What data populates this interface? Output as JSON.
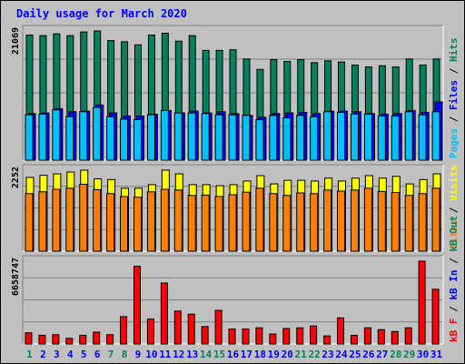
{
  "title": "Daily usage for March 2020",
  "colors": {
    "hits": "#00805C",
    "files": "#0000FF",
    "pages": "#00C0FF",
    "visits": "#FFFF00",
    "sites": "#FF8000",
    "kb_f": "#FF0000",
    "kb_in": "#0000FF",
    "kb_out": "#00805C",
    "weekend_day": "#00805C",
    "weekday": "#0000FF",
    "panel_bg": "#C0C0C0"
  },
  "chart_data": [
    {
      "type": "bar",
      "panel": "hits",
      "categories": [
        "1",
        "2",
        "3",
        "4",
        "5",
        "6",
        "7",
        "8",
        "9",
        "10",
        "11",
        "12",
        "13",
        "14",
        "15",
        "16",
        "17",
        "18",
        "19",
        "20",
        "21",
        "22",
        "23",
        "24",
        "25",
        "26",
        "27",
        "28",
        "29",
        "30",
        "31"
      ],
      "weekend": [
        "1",
        "7",
        "8",
        "14",
        "15",
        "21",
        "22",
        "28",
        "29"
      ],
      "ymax_label": "21069",
      "ymax": 21069,
      "right_labels": [
        "Hits",
        "Files",
        "Pages"
      ],
      "series": [
        {
          "name": "Hits",
          "values": [
            20400,
            20300,
            20600,
            20300,
            20900,
            21069,
            19500,
            19300,
            18800,
            20400,
            20700,
            19400,
            20300,
            17900,
            17900,
            18000,
            16500,
            14800,
            16400,
            16100,
            16400,
            15900,
            16200,
            16000,
            15500,
            15200,
            15400,
            15200,
            16500,
            15500,
            16500
          ]
        },
        {
          "name": "Files",
          "values": [
            7600,
            7700,
            8400,
            7900,
            8000,
            9000,
            7700,
            7200,
            7200,
            7500,
            8100,
            7700,
            8000,
            7700,
            7900,
            7600,
            7300,
            7000,
            7600,
            7700,
            7800,
            7600,
            8000,
            8000,
            7900,
            7600,
            7500,
            7600,
            8100,
            7800,
            9500
          ]
        },
        {
          "name": "Pages",
          "values": [
            7400,
            7500,
            8200,
            7100,
            7900,
            8600,
            7100,
            6700,
            6600,
            7400,
            8100,
            7700,
            7700,
            7600,
            7400,
            7400,
            7300,
            6600,
            7300,
            6900,
            7300,
            7100,
            7900,
            7800,
            7500,
            7500,
            7200,
            7200,
            7900,
            7400,
            7900
          ]
        }
      ]
    },
    {
      "type": "bar",
      "panel": "visits",
      "categories": [
        "1",
        "2",
        "3",
        "4",
        "5",
        "6",
        "7",
        "8",
        "9",
        "10",
        "11",
        "12",
        "13",
        "14",
        "15",
        "16",
        "17",
        "18",
        "19",
        "20",
        "21",
        "22",
        "23",
        "24",
        "25",
        "26",
        "27",
        "28",
        "29",
        "30",
        "31"
      ],
      "ymax_label": "2252",
      "ymax": 2252,
      "right_labels": [
        "Visits",
        "Sites"
      ],
      "series": [
        {
          "name": "Visits",
          "values": [
            2050,
            2110,
            2150,
            2200,
            2252,
            2010,
            1990,
            1750,
            1750,
            1850,
            2252,
            2150,
            1850,
            1850,
            1820,
            1850,
            1950,
            2100,
            1870,
            1970,
            1970,
            1950,
            2030,
            1950,
            2030,
            2100,
            2030,
            2080,
            1870,
            1990,
            2150
          ]
        },
        {
          "name": "Sites",
          "values": [
            1600,
            1650,
            1720,
            1750,
            1860,
            1710,
            1600,
            1520,
            1500,
            1650,
            1720,
            1700,
            1550,
            1560,
            1520,
            1570,
            1640,
            1750,
            1600,
            1550,
            1620,
            1600,
            1700,
            1670,
            1700,
            1750,
            1660,
            1630,
            1550,
            1600,
            1750
          ]
        }
      ]
    },
    {
      "type": "bar",
      "panel": "kbytes",
      "categories": [
        "1",
        "2",
        "3",
        "4",
        "5",
        "6",
        "7",
        "8",
        "9",
        "10",
        "11",
        "12",
        "13",
        "14",
        "15",
        "16",
        "17",
        "18",
        "19",
        "20",
        "21",
        "22",
        "23",
        "24",
        "25",
        "26",
        "27",
        "28",
        "29",
        "30",
        "31"
      ],
      "ymax_label": "6658747",
      "ymax": 6658747,
      "right_labels": [
        "kB F",
        "kB In",
        "kB Out"
      ],
      "series": [
        {
          "name": "kB F",
          "values": [
            900000,
            700000,
            750000,
            450000,
            700000,
            950000,
            750000,
            2200000,
            6250000,
            2000000,
            4900000,
            2650000,
            2400000,
            1400000,
            2700000,
            1200000,
            1200000,
            1300000,
            800000,
            1250000,
            1300000,
            1450000,
            650000,
            2100000,
            700000,
            1300000,
            1150000,
            1000000,
            1300000,
            6658747,
            4400000
          ]
        }
      ]
    }
  ]
}
